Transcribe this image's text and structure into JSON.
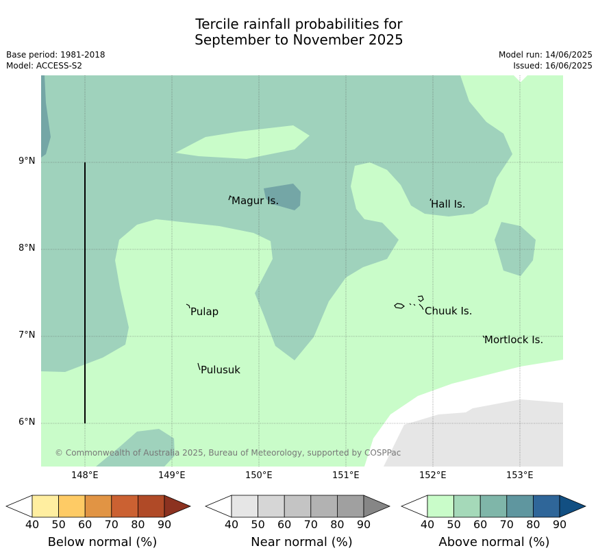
{
  "title": {
    "line1": "Tercile rainfall probabilities for",
    "line2": "September to November 2025"
  },
  "meta": {
    "base_period": "Base period: 1981-2018",
    "model": "Model: ACCESS-S2",
    "model_run": "Model run: 14/06/2025",
    "issued": "Issued: 16/06/2025"
  },
  "axes": {
    "lat_labels": [
      "9°N",
      "8°N",
      "7°N",
      "6°N"
    ],
    "lon_labels": [
      "148°E",
      "149°E",
      "150°E",
      "151°E",
      "152°E",
      "153°E"
    ]
  },
  "places": {
    "magur": "Magur Is.",
    "hall": "Hall Is.",
    "pulap": "Pulap",
    "chuuk": "Chuuk Is.",
    "mortlock": "Mortlock Is.",
    "pulusuk": "Pulusuk"
  },
  "copyright": "© Commonwealth of Australia 2025, Bureau of Meteorology, supported by COSPPac",
  "colorbars": {
    "below": {
      "label": "Below normal (%)",
      "colors": [
        "#ffeea0",
        "#fecb65",
        "#e19444",
        "#cb6132",
        "#b04a27",
        "#8c3220"
      ],
      "ticks": [
        "40",
        "50",
        "60",
        "70",
        "80",
        "90"
      ]
    },
    "near": {
      "label": "Near normal (%)",
      "colors": [
        "#e6e6e6",
        "#d6d6d6",
        "#c4c4c4",
        "#b2b2b2",
        "#a0a0a0",
        "#868686"
      ],
      "ticks": [
        "40",
        "50",
        "60",
        "70",
        "80",
        "90"
      ]
    },
    "above": {
      "label": "Above normal (%)",
      "colors": [
        "#c9fcc9",
        "#a5d9b9",
        "#7fb6a9",
        "#5f969f",
        "#2f6699",
        "#124f82"
      ],
      "ticks": [
        "40",
        "50",
        "60",
        "70",
        "80",
        "90"
      ]
    }
  },
  "map_colors": {
    "above_40_50": "#c9fcc9",
    "above_50_60": "#9fd2bc",
    "above_60_70": "#74a6a6",
    "near_40_50": "#e6e6e6",
    "grid": "#555555"
  }
}
